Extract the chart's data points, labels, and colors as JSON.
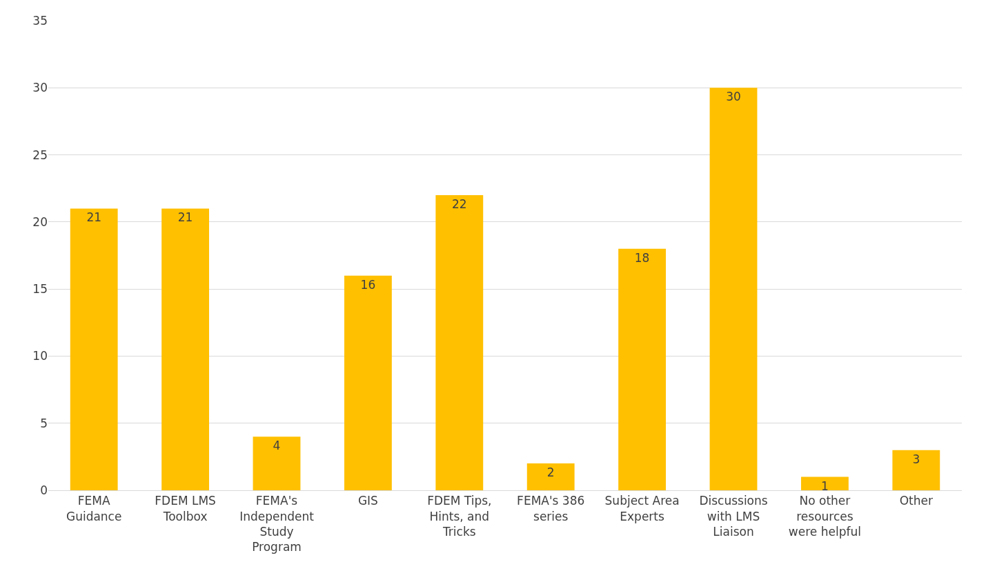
{
  "chart_data": {
    "type": "bar",
    "categories": [
      "FEMA Guidance",
      "FDEM LMS Toolbox",
      "FEMA's Independent Study Program",
      "GIS",
      "FDEM Tips, Hints, and Tricks",
      "FEMA's 386 series",
      "Subject Area Experts",
      "Discussions with LMS Liaison",
      "No other resources were helpful",
      "Other"
    ],
    "values": [
      21,
      21,
      4,
      16,
      22,
      2,
      18,
      30,
      1,
      3
    ],
    "color": "#ffc000",
    "ylim": [
      0,
      35
    ],
    "yticks": [
      0,
      5,
      10,
      15,
      20,
      25,
      30,
      35
    ],
    "grid": "y",
    "data_labels": true,
    "legend": false
  }
}
